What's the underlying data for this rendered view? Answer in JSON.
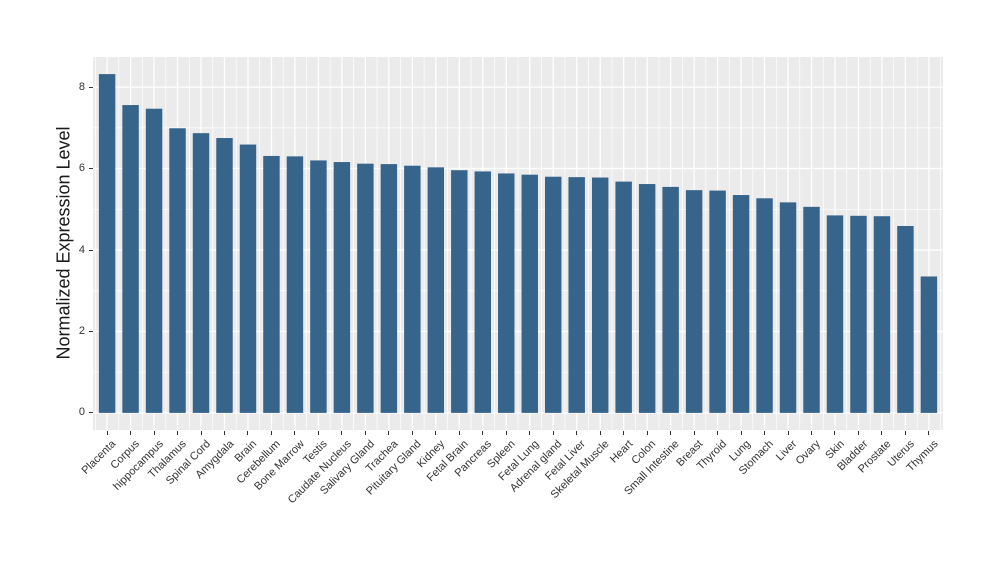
{
  "chart_data": {
    "type": "bar",
    "title": "",
    "xlabel": "",
    "ylabel": "Normalized Expression Level",
    "legend": null,
    "grid": "white-on-gray-panel",
    "panel_color": "#EBEBEB",
    "grid_color": "#FFFFFF",
    "bar_color": "#36648B",
    "axis_text_color": "#333333",
    "yticks_major": [
      0,
      2,
      4,
      6,
      8
    ],
    "yticks_minor": [
      1,
      3,
      5,
      7
    ],
    "ylim": [
      -0.42,
      8.74
    ],
    "categories": [
      "Placenta",
      "Corpus",
      "hippocampus",
      "Thalamus",
      "Spinal Cord",
      "Amygdala",
      "Brain",
      "Cerebellum",
      "Bone Marrow",
      "Testis",
      "Caudate Nucleus",
      "Salivary Gland",
      "Trachea",
      "Pituitary Gland",
      "Kidney",
      "Fetal Brain",
      "Pancreas",
      "Spleen",
      "Fetal Lung",
      "Adrenal gland",
      "Fetal Liver",
      "Skeletal Muscle",
      "Heart",
      "Colon",
      "Small Intestine",
      "Breast",
      "Thyroid",
      "Lung",
      "Stomach",
      "Liver",
      "Ovary",
      "Skin",
      "Bladder",
      "Prostate",
      "Uterus",
      "Thymus"
    ],
    "values": [
      8.32,
      7.56,
      7.47,
      6.99,
      6.87,
      6.75,
      6.59,
      6.31,
      6.3,
      6.2,
      6.16,
      6.12,
      6.11,
      6.07,
      6.03,
      5.96,
      5.93,
      5.88,
      5.85,
      5.8,
      5.79,
      5.78,
      5.68,
      5.62,
      5.55,
      5.47,
      5.46,
      5.35,
      5.27,
      5.17,
      5.06,
      4.85,
      4.84,
      4.83,
      4.59,
      3.35
    ]
  }
}
